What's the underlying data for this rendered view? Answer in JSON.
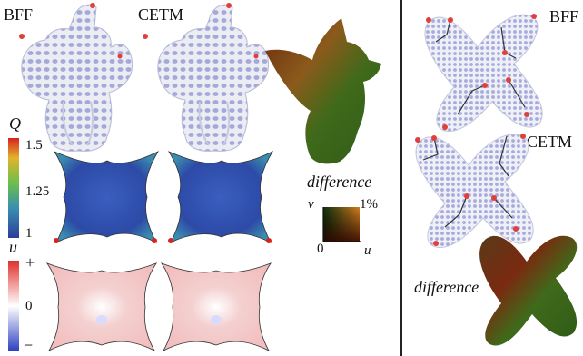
{
  "labels": {
    "method_a": "BFF",
    "method_b": "CETM",
    "method_a_right": "BFF",
    "method_b_right": "CETM",
    "difference_mid": "difference",
    "difference_right": "difference"
  },
  "colorbar_q": {
    "symbol": "Q",
    "ticks": [
      "1.5",
      "1.25",
      "1"
    ]
  },
  "colorbar_u": {
    "symbol": "u",
    "ticks": [
      "+",
      "0",
      "−"
    ]
  },
  "difference_key": {
    "v_axis": "v",
    "u_axis": "u",
    "max": "1%",
    "zero": "0"
  },
  "colors": {
    "shape_fill": "#e9e9f2",
    "dot_color": "#9ea3d8",
    "param_blue": "#2f4fa8",
    "param_pink": "#f6d2d2",
    "marker_red": "#e0403c"
  }
}
